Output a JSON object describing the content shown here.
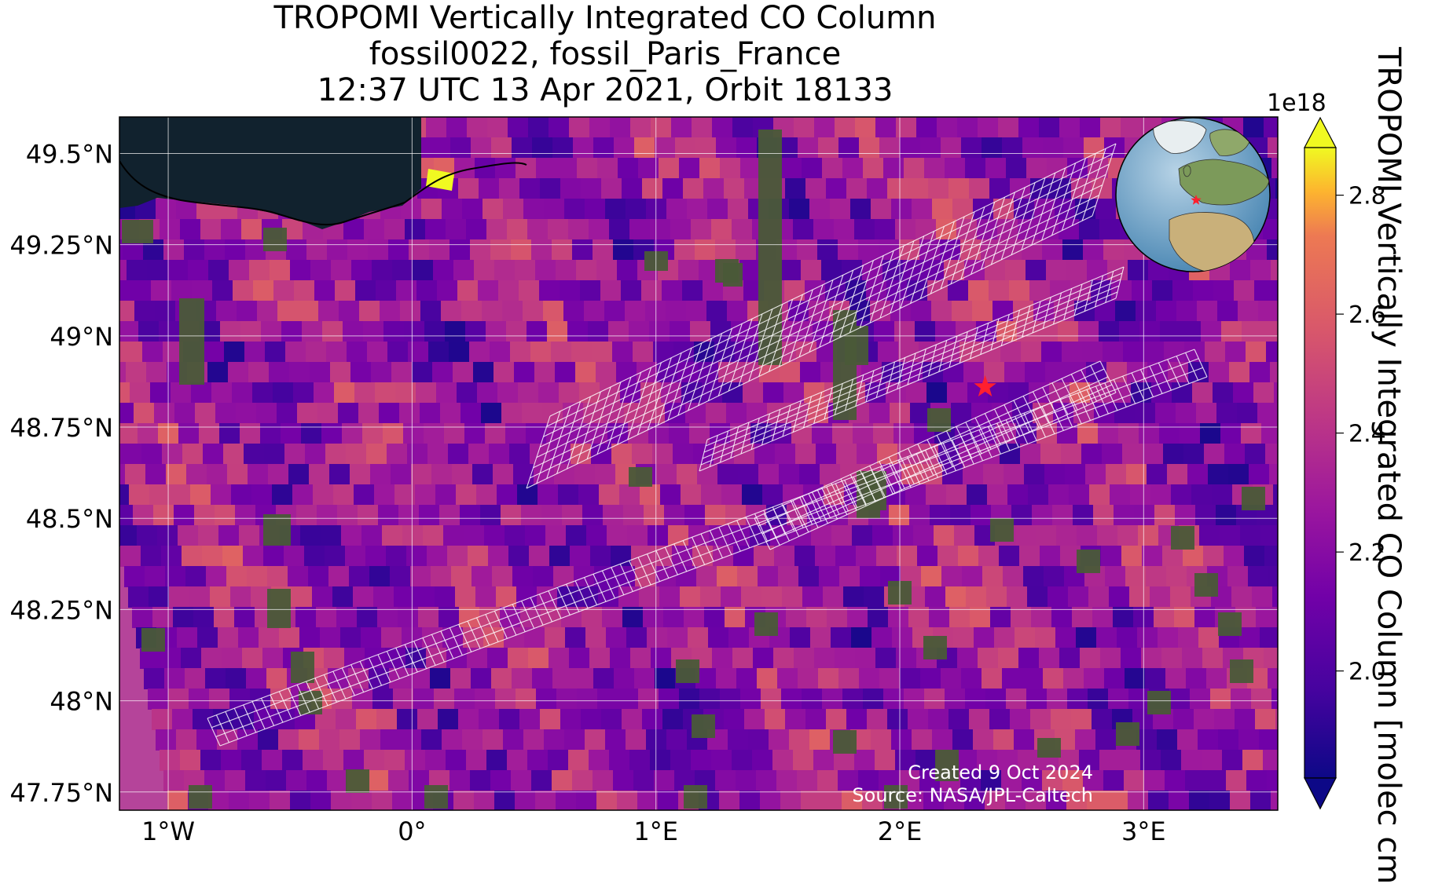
{
  "title": {
    "line1": "TROPOMI Vertically Integrated CO Column",
    "line2": "fossil0022, fossil_Paris_France",
    "line3": "12:37 UTC 13 Apr 2021, Orbit 18133"
  },
  "map": {
    "extent_lon": [
      -1.2,
      3.55
    ],
    "extent_lat": [
      47.7,
      49.6
    ],
    "lon_ticks": [
      {
        "value": -1,
        "label": "1°W"
      },
      {
        "value": 0,
        "label": "0°"
      },
      {
        "value": 1,
        "label": "1°E"
      },
      {
        "value": 2,
        "label": "2°E"
      },
      {
        "value": 3,
        "label": "3°E"
      }
    ],
    "lat_ticks": [
      {
        "value": 49.5,
        "label": "49.5°N"
      },
      {
        "value": 49.25,
        "label": "49.25°N"
      },
      {
        "value": 49.0,
        "label": "49°N"
      },
      {
        "value": 48.75,
        "label": "48.75°N"
      },
      {
        "value": 48.5,
        "label": "48.5°N"
      },
      {
        "value": 48.25,
        "label": "48.25°N"
      },
      {
        "value": 48.0,
        "label": "48°N"
      },
      {
        "value": 47.75,
        "label": "47.75°N"
      }
    ],
    "site_marker": {
      "lon": 2.35,
      "lat": 48.86,
      "color": "#ff1f2e"
    },
    "grid_lines": true
  },
  "colorbar": {
    "label": "TROPOMI Vertically Integrated CO Column [molec cm",
    "exponent": "1e18",
    "colormap": "plasma",
    "range": [
      1.82,
      2.88
    ],
    "ticks": [
      {
        "value": 2.0,
        "label": "2.0"
      },
      {
        "value": 2.2,
        "label": "2.2"
      },
      {
        "value": 2.4,
        "label": "2.4"
      },
      {
        "value": 2.6,
        "label": "2.6"
      },
      {
        "value": 2.8,
        "label": "2.8"
      }
    ],
    "extend": "both"
  },
  "credits": {
    "created": "Created 9 Oct 2024",
    "source": "Source: NASA/JPL-Caltech"
  },
  "colors": {
    "sea": "#11222e",
    "land_tile": "#4a5a38",
    "footprint_outline": "#ffffff",
    "coastline": "#000000"
  },
  "icons": {
    "inset": "globe-locator-icon",
    "marker": "star-icon"
  }
}
